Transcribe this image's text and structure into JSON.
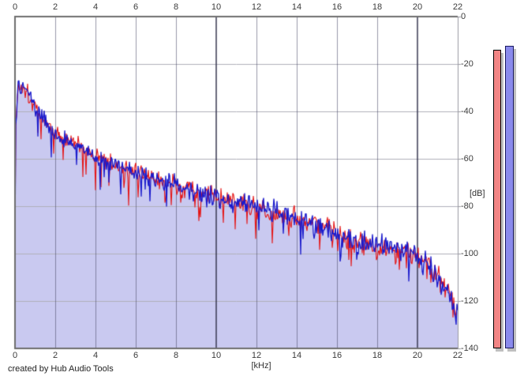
{
  "window": {
    "background": "#ffffff"
  },
  "credit_text": "created by Hub Audio Tools",
  "chart_data": {
    "type": "line",
    "title": "",
    "xlabel": "[kHz]",
    "ylabel": "[dB]",
    "xlim": [
      0,
      22
    ],
    "ylim": [
      -140,
      0
    ],
    "x_ticks": [
      "0",
      "2",
      "4",
      "6",
      "8",
      "10",
      "12",
      "14",
      "16",
      "18",
      "20",
      "22"
    ],
    "y_ticks": [
      "0",
      "-20",
      "-40",
      "-60",
      "-80",
      "-100",
      "-120",
      "-140"
    ],
    "grid": true,
    "grid_emphasis_khz": [
      10,
      20
    ],
    "legend": "none",
    "noise_peak_to_peak_db": 10,
    "series": [
      {
        "name": "spectrum-trace-red",
        "color": "#e51414",
        "style": "jagged-line",
        "x_khz": [
          0,
          0.15,
          0.4,
          0.7,
          1,
          1.5,
          2,
          2.5,
          3,
          3.5,
          4,
          4.5,
          5,
          5.5,
          6,
          6.5,
          7,
          7.5,
          8,
          8.5,
          9,
          9.5,
          10,
          10.5,
          11,
          11.5,
          12,
          12.5,
          13,
          13.5,
          14,
          14.5,
          15,
          15.5,
          16,
          16.5,
          17,
          17.5,
          18,
          18.5,
          19,
          19.5,
          20,
          20.4,
          20.8,
          21.2,
          21.6,
          22
        ],
        "db": [
          -52,
          -30,
          -29,
          -33,
          -39,
          -44,
          -49,
          -52,
          -54,
          -56,
          -59,
          -61,
          -63,
          -64.5,
          -66,
          -67.5,
          -69,
          -70,
          -71,
          -72.5,
          -74,
          -75,
          -76.5,
          -77.5,
          -78.5,
          -79.5,
          -80.5,
          -81.5,
          -82.5,
          -84,
          -85,
          -86.5,
          -87.5,
          -89,
          -92,
          -93.5,
          -95,
          -95.5,
          -96.5,
          -97,
          -98,
          -99,
          -100.5,
          -103,
          -107,
          -112,
          -118,
          -126
        ]
      },
      {
        "name": "spectrum-trace-blue",
        "color": "#1a1acc",
        "style": "jagged-line-filled",
        "fill_color": "#c9c9f0",
        "x_khz": [
          0,
          0.15,
          0.4,
          0.7,
          1,
          1.5,
          2,
          2.5,
          3,
          3.5,
          4,
          4.5,
          5,
          5.5,
          6,
          6.5,
          7,
          7.5,
          8,
          8.5,
          9,
          9.5,
          10,
          10.5,
          11,
          11.5,
          12,
          12.5,
          13,
          13.5,
          14,
          14.5,
          15,
          15.5,
          16,
          16.5,
          17,
          17.5,
          18,
          18.5,
          19,
          19.5,
          20,
          20.4,
          20.8,
          21.2,
          21.6,
          22
        ],
        "db": [
          -52,
          -30,
          -29,
          -33,
          -39,
          -44,
          -49,
          -52,
          -54,
          -56,
          -59,
          -61,
          -63,
          -64.5,
          -66,
          -67.5,
          -69,
          -70,
          -71,
          -72.5,
          -74,
          -75,
          -76.5,
          -77.5,
          -78.5,
          -79.5,
          -80.5,
          -81.5,
          -82.5,
          -84,
          -85,
          -86.5,
          -87.5,
          -89,
          -92,
          -93.5,
          -95,
          -95.5,
          -96.5,
          -97,
          -98,
          -99,
          -100.5,
          -103,
          -107,
          -112,
          -118,
          -126
        ]
      }
    ]
  },
  "level_meters": [
    {
      "name": "red-meter",
      "color": "#f28585",
      "outline": "#000000",
      "shadow": "#bfbfbf",
      "value_db": -14,
      "min_db": -140
    },
    {
      "name": "blue-meter",
      "color": "#8a8aec",
      "outline": "#19195e",
      "shadow": "#bfbfbf",
      "value_db": -12.3,
      "min_db": -140
    }
  ],
  "axis_colors": {
    "frame": "#6e6e6e",
    "grid_horizontal": "#b0b0ba",
    "grid_vertical": "#6a6a8e",
    "right_axis": "#9a9aa2"
  }
}
